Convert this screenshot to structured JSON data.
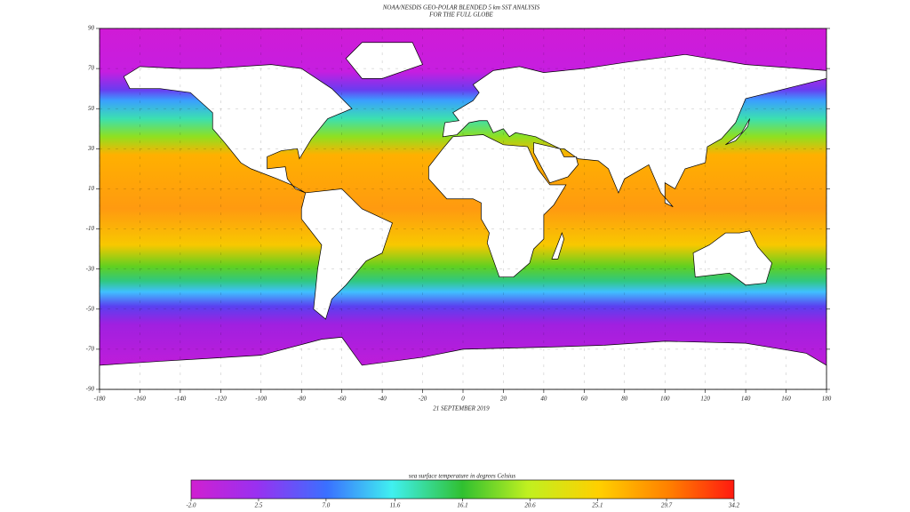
{
  "title": [
    "NOAA/NESDIS GEO-POLAR BLENDED 5 km SST ANALYSIS",
    "FOR THE FULL GLOBE"
  ],
  "date": "21 SEPTEMBER 2019",
  "map": {
    "xlim": [
      -180,
      180
    ],
    "ylim": [
      -90,
      90
    ],
    "xticks": [
      -180,
      -160,
      -140,
      -120,
      -100,
      -80,
      -60,
      -40,
      -20,
      0,
      20,
      40,
      60,
      80,
      100,
      120,
      140,
      160,
      180
    ],
    "yticks": [
      -90,
      -70,
      -50,
      -30,
      -10,
      10,
      30,
      50,
      70,
      90
    ]
  },
  "colorbar": {
    "label": "sea surface temperature in degrees Celsius",
    "lim": [
      -2,
      34.2
    ],
    "ticks": [
      {
        "value": -2,
        "label": "-2.0"
      },
      2.5,
      {
        "value": 7,
        "label": "7.0"
      },
      11.6,
      16.1,
      20.6,
      25.1,
      29.7,
      34.2
    ]
  }
}
